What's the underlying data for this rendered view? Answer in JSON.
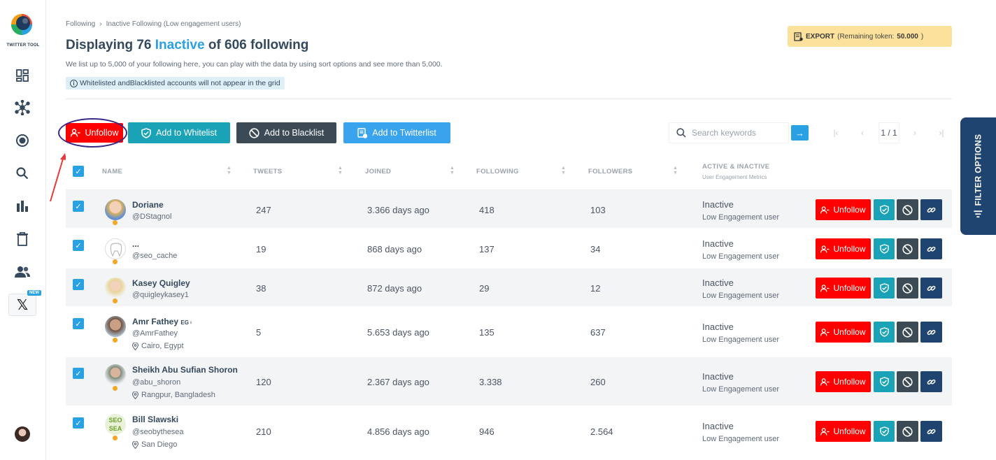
{
  "app": {
    "logo_text": "TWITTER TOOL",
    "new_badge": "NEW",
    "x_label": "𝕏"
  },
  "sidebar": {
    "items": [
      {
        "icon": "dashboard-icon"
      },
      {
        "icon": "network-icon"
      },
      {
        "icon": "target-icon"
      },
      {
        "icon": "search-icon"
      },
      {
        "icon": "bar-chart-icon"
      },
      {
        "icon": "trash-icon"
      },
      {
        "icon": "users-icon"
      },
      {
        "icon": "x-logo-icon"
      }
    ]
  },
  "breadcrumb": {
    "parent": "Following",
    "current": "Inactive Following (Low engagement users)"
  },
  "header": {
    "title_prefix": "Displaying 76",
    "title_accent": "Inactive",
    "title_suffix": "of 606 following",
    "subtitle": "We list up to 5,000 of your following here, you can play with the data by using sort options and see more than 5,000.",
    "note": "Whitelisted andBlacklisted accounts will not appear in the grid"
  },
  "export": {
    "label": "EXPORT",
    "remaining_label": "(Remaining token:",
    "remaining_value": "50.000",
    "close_paren": ")"
  },
  "toolbar": {
    "unfollow": "Unfollow",
    "add_whitelist": "Add to Whitelist",
    "add_blacklist": "Add to Blacklist",
    "add_twitterlist": "Add to Twitterlist"
  },
  "search": {
    "placeholder": "Search keywords",
    "value": ""
  },
  "pagination": {
    "first": "|‹",
    "prev": "‹",
    "current": "1 / 1",
    "next": "›",
    "last": "›|"
  },
  "filter_tab": {
    "label": "FILTER OPTIONS"
  },
  "table": {
    "headers": {
      "name": "NAME",
      "tweets": "TWEETS",
      "joined": "JOINED",
      "following": "FOLLOWING",
      "followers": "FOLLOWERS",
      "status": "ACTIVE & INACTIVE",
      "status_sub": "User Engagement Metrics"
    },
    "action_unfollow": "Unfollow",
    "rows": [
      {
        "name": "Doriane",
        "handle": "@DStagnol",
        "location": "",
        "tweets": "247",
        "joined": "3.366 days ago",
        "following": "418",
        "followers": "103",
        "status": "Inactive",
        "status_detail": "Low Engagement user"
      },
      {
        "name": "...",
        "handle": "@seo_cache",
        "location": "",
        "tweets": "19",
        "joined": "868 days ago",
        "following": "137",
        "followers": "34",
        "status": "Inactive",
        "status_detail": "Low Engagement user"
      },
      {
        "name": "Kasey Quigley",
        "handle": "@quigleykasey1",
        "location": "",
        "tweets": "38",
        "joined": "872 days ago",
        "following": "29",
        "followers": "12",
        "status": "Inactive",
        "status_detail": "Low Engagement user"
      },
      {
        "name": "Amr Fathey",
        "name_suffix": "EG♀",
        "handle": "@AmrFathey",
        "location": "Cairo, Egypt",
        "tweets": "5",
        "joined": "5.653 days ago",
        "following": "135",
        "followers": "637",
        "status": "Inactive",
        "status_detail": "Low Engagement user"
      },
      {
        "name": "Sheikh Abu Sufian Shoron",
        "handle": "@abu_shoron",
        "location": "Rangpur, Bangladesh",
        "tweets": "120",
        "joined": "2.367 days ago",
        "following": "3.338",
        "followers": "260",
        "status": "Inactive",
        "status_detail": "Low Engagement user"
      },
      {
        "name": "Bill Slawski",
        "handle": "@seobythesea",
        "location": "San Diego",
        "tweets": "210",
        "joined": "4.856 days ago",
        "following": "946",
        "followers": "2.564",
        "status": "Inactive",
        "status_detail": "Low Engagement user"
      }
    ]
  },
  "colors": {
    "accent": "#2aa1e3",
    "unfollow_red": "#ff0000",
    "whitelist_teal": "#1aa3b6",
    "blacklist_dark": "#3b4a55",
    "twitterlist_blue": "#3aa3ee",
    "navy": "#1f4470",
    "export_yellow": "#fbe19c"
  }
}
